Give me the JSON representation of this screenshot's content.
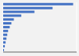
{
  "chart_data": {
    "type": "bar",
    "orientation": "horizontal",
    "categories": [
      null,
      null,
      null,
      null,
      null,
      null,
      null,
      null,
      null,
      null,
      null,
      null,
      null
    ],
    "values": [
      1,
      2,
      3,
      4,
      5,
      6,
      8,
      10,
      13,
      22,
      38,
      60,
      85
    ],
    "color": "#4472C4",
    "xlim": [
      0,
      89.25
    ],
    "xticks": [
      0,
      17,
      34,
      51,
      68,
      85
    ],
    "grid": true,
    "tick_labels": false
  }
}
